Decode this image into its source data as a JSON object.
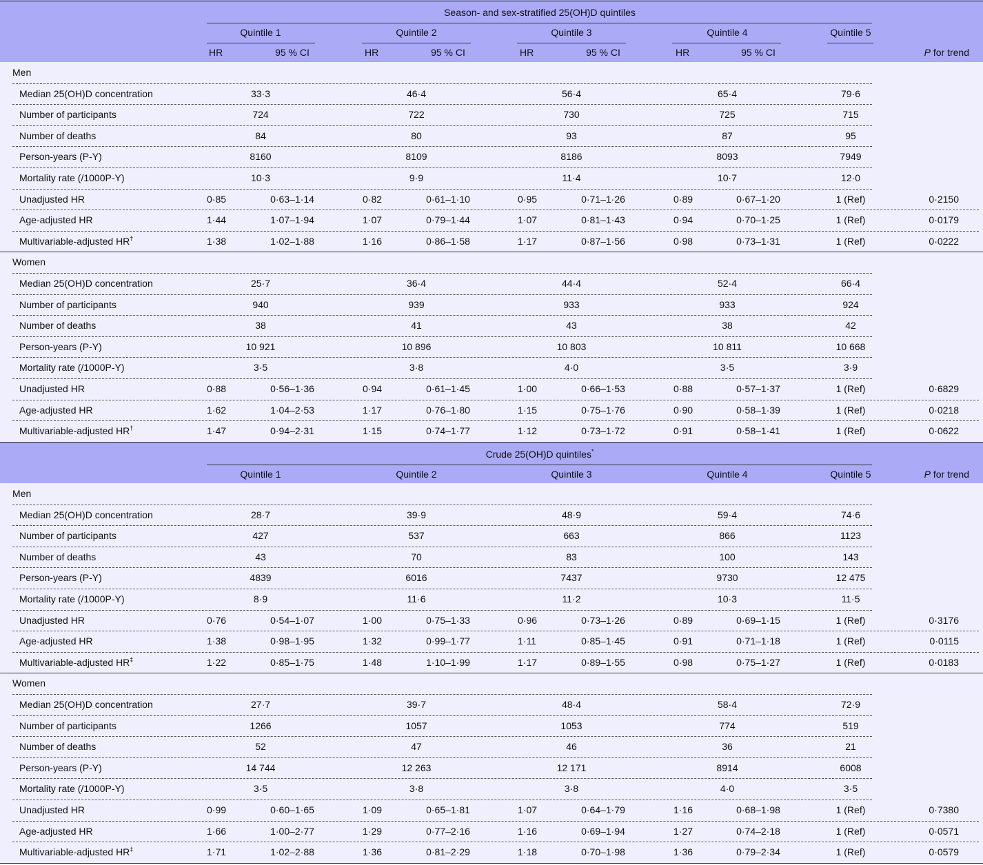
{
  "sections": [
    {
      "title": "Season- and sex-stratified 25(OH)D quintiles",
      "quintiles": [
        "Quintile 1",
        "Quintile 2",
        "Quintile 3",
        "Quintile 4",
        "Quintile 5"
      ],
      "subheaders": [
        "HR",
        "95 % CI"
      ],
      "trend": [
        "P",
        " for trend"
      ],
      "groups": [
        {
          "name": "Men",
          "rows": [
            {
              "label": "Median 25(OH)D concentration",
              "values": [
                "33·3",
                "46·4",
                "56·4",
                "65·4",
                "79·6"
              ]
            },
            {
              "label": "Number of participants",
              "values": [
                "724",
                "722",
                "730",
                "725",
                "715"
              ]
            },
            {
              "label": "Number of deaths",
              "values": [
                "84",
                "80",
                "93",
                "87",
                "95"
              ]
            },
            {
              "label": "Person-years (P-Y)",
              "values": [
                "8160",
                "8109",
                "8186",
                "8093",
                "7949"
              ]
            },
            {
              "label": "Mortality rate (/1000P-Y)",
              "values": [
                "10·3",
                "9·9",
                "11·4",
                "10·7",
                "12·0"
              ]
            },
            {
              "label": "Unadjusted HR",
              "hr": [
                [
                  "0·85",
                  "0·63–1·14"
                ],
                [
                  "0·82",
                  "0·61–1·10"
                ],
                [
                  "0·95",
                  "0·71–1·26"
                ],
                [
                  "0·89",
                  "0·67–1·20"
                ]
              ],
              "ref": "1 (Ref)",
              "p": "0·2150"
            },
            {
              "label": "Age-adjusted HR",
              "hr": [
                [
                  "1·44",
                  "1·07–1·94"
                ],
                [
                  "1·07",
                  "0·79–1·44"
                ],
                [
                  "1·07",
                  "0·81–1·43"
                ],
                [
                  "0·94",
                  "0·70–1·25"
                ]
              ],
              "ref": "1 (Ref)",
              "p": "0·0179"
            },
            {
              "label": "Multivariable-adjusted HR",
              "sup": "†",
              "hr": [
                [
                  "1·38",
                  "1·02–1·88"
                ],
                [
                  "1·16",
                  "0·86–1·58"
                ],
                [
                  "1·17",
                  "0·87–1·56"
                ],
                [
                  "0·98",
                  "0·73–1·31"
                ]
              ],
              "ref": "1 (Ref)",
              "p": "0·0222"
            }
          ]
        },
        {
          "name": "Women",
          "rows": [
            {
              "label": "Median 25(OH)D concentration",
              "values": [
                "25·7",
                "36·4",
                "44·4",
                "52·4",
                "66·4"
              ]
            },
            {
              "label": "Number of participants",
              "values": [
                "940",
                "939",
                "933",
                "933",
                "924"
              ]
            },
            {
              "label": "Number of deaths",
              "values": [
                "38",
                "41",
                "43",
                "38",
                "42"
              ]
            },
            {
              "label": "Person-years (P-Y)",
              "values": [
                "10 921",
                "10 896",
                "10 803",
                "10 811",
                "10 668"
              ]
            },
            {
              "label": "Mortality rate (/1000P-Y)",
              "values": [
                "3·5",
                "3·8",
                "4·0",
                "3·5",
                "3·9"
              ]
            },
            {
              "label": "Unadjusted HR",
              "hr": [
                [
                  "0·88",
                  "0·56–1·36"
                ],
                [
                  "0·94",
                  "0·61–1·45"
                ],
                [
                  "1·00",
                  "0·66–1·53"
                ],
                [
                  "0·88",
                  "0·57–1·37"
                ]
              ],
              "ref": "1 (Ref)",
              "p": "0·6829"
            },
            {
              "label": "Age-adjusted HR",
              "hr": [
                [
                  "1·62",
                  "1·04–2·53"
                ],
                [
                  "1·17",
                  "0·76–1·80"
                ],
                [
                  "1·15",
                  "0·75–1·76"
                ],
                [
                  "0·90",
                  "0·58–1·39"
                ]
              ],
              "ref": "1 (Ref)",
              "p": "0·0218"
            },
            {
              "label": "Multivariable-adjusted HR",
              "sup": "†",
              "hr": [
                [
                  "1·47",
                  "0·94–2·31"
                ],
                [
                  "1·15",
                  "0·74–1·77"
                ],
                [
                  "1·12",
                  "0·73–1·72"
                ],
                [
                  "0·91",
                  "0·58–1·41"
                ]
              ],
              "ref": "1 (Ref)",
              "p": "0·0622"
            }
          ]
        }
      ]
    },
    {
      "title": "Crude 25(OH)D quintiles",
      "title_sup": "*",
      "quintiles": [
        "Quintile 1",
        "Quintile 2",
        "Quintile 3",
        "Quintile 4",
        "Quintile 5"
      ],
      "trend": [
        "P",
        " for trend"
      ],
      "groups": [
        {
          "name": "Men",
          "rows": [
            {
              "label": "Median 25(OH)D concentration",
              "values": [
                "28·7",
                "39·9",
                "48·9",
                "59·4",
                "74·6"
              ]
            },
            {
              "label": "Number of participants",
              "values": [
                "427",
                "537",
                "663",
                "866",
                "1123"
              ]
            },
            {
              "label": "Number of deaths",
              "values": [
                "43",
                "70",
                "83",
                "100",
                "143"
              ]
            },
            {
              "label": "Person-years (P-Y)",
              "values": [
                "4839",
                "6016",
                "7437",
                "9730",
                "12 475"
              ]
            },
            {
              "label": "Mortality rate (/1000P-Y)",
              "values": [
                "8·9",
                "11·6",
                "11·2",
                "10·3",
                "11·5"
              ]
            },
            {
              "label": "Unadjusted HR",
              "hr": [
                [
                  "0·76",
                  "0·54–1·07"
                ],
                [
                  "1·00",
                  "0·75–1·33"
                ],
                [
                  "0·96",
                  "0·73–1·26"
                ],
                [
                  "0·89",
                  "0·69–1·15"
                ]
              ],
              "ref": "1 (Ref)",
              "p": "0·3176"
            },
            {
              "label": "Age-adjusted HR",
              "hr": [
                [
                  "1·38",
                  "0·98–1·95"
                ],
                [
                  "1·32",
                  "0·99–1·77"
                ],
                [
                  "1·11",
                  "0·85–1·45"
                ],
                [
                  "0·91",
                  "0·71–1·18"
                ]
              ],
              "ref": "1 (Ref)",
              "p": "0·0115"
            },
            {
              "label": "Multivariable-adjusted HR",
              "sup": "‡",
              "hr": [
                [
                  "1·22",
                  "0·85–1·75"
                ],
                [
                  "1·48",
                  "1·10–1·99"
                ],
                [
                  "1·17",
                  "0·89–1·55"
                ],
                [
                  "0·98",
                  "0·75–1·27"
                ]
              ],
              "ref": "1 (Ref)",
              "p": "0·0183"
            }
          ]
        },
        {
          "name": "Women",
          "rows": [
            {
              "label": "Median 25(OH)D concentration",
              "values": [
                "27·7",
                "39·7",
                "48·4",
                "58·4",
                "72·9"
              ]
            },
            {
              "label": "Number of participants",
              "values": [
                "1266",
                "1057",
                "1053",
                "774",
                "519"
              ]
            },
            {
              "label": "Number of deaths",
              "values": [
                "52",
                "47",
                "46",
                "36",
                "21"
              ]
            },
            {
              "label": "Person-years (P-Y)",
              "values": [
                "14 744",
                "12 263",
                "12 171",
                "8914",
                "6008"
              ]
            },
            {
              "label": "Mortality rate (/1000P-Y)",
              "values": [
                "3·5",
                "3·8",
                "3·8",
                "4·0",
                "3·5"
              ]
            },
            {
              "label": "Unadjusted HR",
              "hr": [
                [
                  "0·99",
                  "0·60–1·65"
                ],
                [
                  "1·09",
                  "0·65–1·81"
                ],
                [
                  "1·07",
                  "0·64–1·79"
                ],
                [
                  "1·16",
                  "0·68–1·98"
                ]
              ],
              "ref": "1 (Ref)",
              "p": "0·7380"
            },
            {
              "label": "Age-adjusted HR",
              "hr": [
                [
                  "1·66",
                  "1·00–2·77"
                ],
                [
                  "1·29",
                  "0·77–2·16"
                ],
                [
                  "1·16",
                  "0·69–1·94"
                ],
                [
                  "1·27",
                  "0·74–2·18"
                ]
              ],
              "ref": "1 (Ref)",
              "p": "0·0571"
            },
            {
              "label": "Multivariable-adjusted HR",
              "sup": "‡",
              "hr": [
                [
                  "1·71",
                  "1·02–2·88"
                ],
                [
                  "1·36",
                  "0·81–2·29"
                ],
                [
                  "1·18",
                  "0·70–1·98"
                ],
                [
                  "1·36",
                  "0·79–2·34"
                ]
              ],
              "ref": "1 (Ref)",
              "p": "0·0579"
            }
          ]
        }
      ]
    }
  ]
}
